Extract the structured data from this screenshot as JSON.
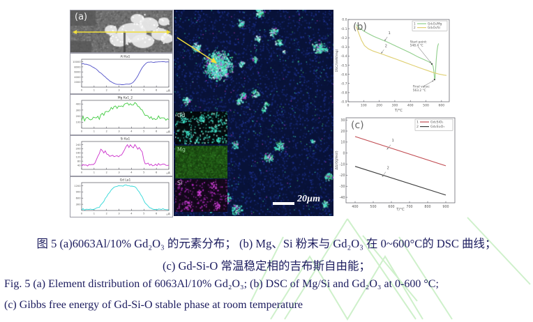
{
  "document": {
    "background": "#ffffff",
    "text_color": "#1b1b5e",
    "watermark_color": "#c9efc5"
  },
  "figure": {
    "panel_a_label": "(a)",
    "scale_bar_label": "20µm",
    "insets": [
      {
        "label": "Gd"
      },
      {
        "label": "Mg"
      },
      {
        "label": "Si"
      }
    ],
    "colors": {
      "scan_line": "#f2df3a",
      "annotation_arrow": "#f2df3a",
      "map_background": "#081238",
      "gd_speckle": "#3fe6cb",
      "mg_field": "#2c711f",
      "si_speckle": "#b82cc8"
    }
  },
  "caption": {
    "line1": "图 5 (a)6063Al/10% Gd₂O₃ 的元素分布；  (b) Mg、Si 粉末与 Gd₂O₃ 在 0~600°C的 DSC 曲线；",
    "line2": "(c) Gd-Si-O 常温稳定相的吉布斯自由能；",
    "line3": "Fig. 5 (a) Element distribution of 6063Al/10% Gd₂O₃; (b) DSC of Mg/Si and Gd₂O₃ at 0-600 °C;",
    "line4": "(c) Gibbs free energy of Gd-Si-O stable phase at room temperature"
  },
  "chart_data": [
    {
      "id": "scan-al",
      "type": "line",
      "title": "Al Ka1",
      "xlabel": "µm",
      "xlim": [
        0,
        7
      ],
      "xticks": [
        0,
        1,
        2,
        3,
        4,
        5,
        6,
        7
      ],
      "ylim": [
        0,
        11000
      ],
      "yticks": [
        2000,
        4000,
        6000,
        8000,
        10000
      ],
      "series": [
        {
          "name": "Al Ka1",
          "color": "#5050c8",
          "jitter": 110,
          "values": [
            9200,
            9250,
            9120,
            9040,
            8900,
            8720,
            8460,
            8160,
            7820,
            7420,
            6960,
            6460,
            5960,
            5460,
            4960,
            4460,
            3960,
            3460,
            2960,
            2460,
            2060,
            1720,
            1460,
            1260,
            1160,
            1100,
            1080,
            1060,
            1050,
            1060,
            1085,
            1125,
            1200,
            1350,
            1600,
            2000,
            2600,
            3400,
            4400,
            5500,
            6600,
            7600,
            8450,
            9100,
            9550,
            9780,
            9880,
            9940,
            9900,
            9860,
            9940,
            10000,
            9910,
            9960,
            10040,
            9980,
            10020,
            9960,
            10030,
            10000
          ]
        }
      ]
    },
    {
      "id": "scan-mg",
      "type": "line",
      "title": "Mg Ka1_2",
      "xlabel": "µm",
      "xlim": [
        0,
        7
      ],
      "xticks": [
        0,
        1,
        2,
        3,
        4,
        5,
        6,
        7
      ],
      "ylim": [
        0,
        460
      ],
      "yticks": [
        100,
        200,
        300,
        400
      ],
      "series": [
        {
          "name": "Mg Ka1_2",
          "color": "#3ecb3e",
          "jitter": 24,
          "values": [
            150,
            178,
            142,
            168,
            186,
            154,
            132,
            162,
            192,
            172,
            150,
            182,
            162,
            200,
            232,
            214,
            252,
            282,
            264,
            302,
            330,
            312,
            352,
            372,
            344,
            376,
            360,
            392,
            372,
            402,
            386,
            406,
            392,
            410,
            396,
            380,
            400,
            386,
            364,
            340,
            310,
            280,
            252,
            224,
            206,
            186,
            172,
            190,
            162,
            182,
            152,
            172,
            190,
            160,
            176,
            154,
            170,
            146,
            166,
            156
          ]
        }
      ]
    },
    {
      "id": "scan-si",
      "type": "line",
      "title": "Si Ka1",
      "xlabel": "µm",
      "xlim": [
        0,
        7
      ],
      "xticks": [
        0,
        1,
        2,
        3,
        4,
        5,
        6,
        7
      ],
      "ylim": [
        0,
        270
      ],
      "yticks": [
        40,
        80,
        120,
        160,
        200,
        240
      ],
      "series": [
        {
          "name": "Si Ka1",
          "color": "#cc2fcc",
          "jitter": 11,
          "values": [
            45,
            38,
            50,
            42,
            36,
            48,
            42,
            55,
            50,
            60,
            85,
            120,
            160,
            185,
            175,
            160,
            170,
            150,
            140,
            130,
            125,
            135,
            120,
            130,
            140,
            126,
            136,
            150,
            170,
            190,
            210,
            234,
            216,
            240,
            226,
            206,
            230,
            210,
            196,
            206,
            186,
            160,
            96,
            60,
            50,
            55,
            44,
            50,
            42,
            46,
            55,
            44,
            50,
            40,
            48,
            44,
            52,
            46,
            42,
            48
          ]
        }
      ]
    },
    {
      "id": "scan-gd",
      "type": "line",
      "title": "Gd La1",
      "xlabel": "µm",
      "xlim": [
        0,
        7
      ],
      "xticks": [
        0,
        1,
        2,
        3,
        4,
        5,
        6,
        7
      ],
      "ylim": [
        0,
        1350
      ],
      "yticks": [
        300,
        600,
        900,
        1200
      ],
      "series": [
        {
          "name": "Gd La1",
          "color": "#2fd8d8",
          "jitter": 32,
          "values": [
            55,
            60,
            50,
            58,
            65,
            55,
            60,
            70,
            62,
            75,
            90,
            120,
            170,
            240,
            330,
            440,
            560,
            680,
            790,
            890,
            980,
            1060,
            1120,
            1160,
            1190,
            1210,
            1190,
            1225,
            1200,
            1235,
            1210,
            1190,
            1220,
            1180,
            1200,
            1160,
            1120,
            1060,
            980,
            880,
            760,
            630,
            500,
            380,
            280,
            200,
            145,
            110,
            90,
            75,
            65,
            60,
            55,
            62,
            58,
            65,
            55,
            60,
            52,
            58
          ]
        }
      ]
    },
    {
      "id": "dsc",
      "type": "line",
      "panel_label": "(b)",
      "title": "DSC of Mg/Si powder with Gd2O3",
      "xlabel": "T/°C",
      "ylabel": "DSC/(mW/mg)",
      "xlim": [
        0,
        650
      ],
      "xticks": [
        0,
        100,
        200,
        300,
        400,
        500,
        600
      ],
      "ylim": [
        -0.9,
        0
      ],
      "yticks": [
        0,
        -0.1,
        -0.2,
        -0.3,
        -0.4,
        -0.5,
        -0.6,
        -0.7,
        -0.8,
        -0.9
      ],
      "ytick_labels": [
        "0.0",
        "-0.1",
        "-0.2",
        "-0.3",
        "-0.4",
        "-0.5",
        "-0.6",
        "-0.7",
        "-0.8",
        "-0.9"
      ],
      "legend": [
        {
          "num": "1",
          "name": "Gd₂O₃/Mg",
          "color": "#8fce8a"
        },
        {
          "num": "2",
          "name": "Gd₂O₃/Si",
          "color": "#dfcf70"
        }
      ],
      "series": [
        {
          "name": "Gd₂O₃/Mg",
          "color": "#8fce8a",
          "points": [
            [
              52,
              -0.055
            ],
            [
              75,
              -0.095
            ],
            [
              100,
              -0.125
            ],
            [
              130,
              -0.155
            ],
            [
              165,
              -0.185
            ],
            [
              200,
              -0.21
            ],
            [
              250,
              -0.245
            ],
            [
              300,
              -0.285
            ],
            [
              350,
              -0.325
            ],
            [
              400,
              -0.365
            ],
            [
              450,
              -0.41
            ],
            [
              490,
              -0.44
            ],
            [
              515,
              -0.46
            ],
            [
              535,
              -0.48
            ],
            [
              546,
              -0.51
            ],
            [
              551,
              -0.565
            ],
            [
              554,
              -0.625
            ],
            [
              556,
              -0.655
            ],
            [
              559,
              -0.635
            ],
            [
              562,
              -0.55
            ],
            [
              566,
              -0.44
            ],
            [
              571,
              -0.345
            ],
            [
              576,
              -0.29
            ],
            [
              581,
              -0.262
            ]
          ]
        },
        {
          "name": "Gd₂O₃/Si",
          "color": "#dfcf70",
          "points": [
            [
              52,
              -0.075
            ],
            [
              68,
              -0.15
            ],
            [
              85,
              -0.225
            ],
            [
              105,
              -0.285
            ],
            [
              130,
              -0.32
            ],
            [
              160,
              -0.345
            ],
            [
              195,
              -0.365
            ],
            [
              230,
              -0.385
            ],
            [
              270,
              -0.41
            ],
            [
              310,
              -0.435
            ],
            [
              350,
              -0.46
            ],
            [
              390,
              -0.485
            ],
            [
              430,
              -0.51
            ],
            [
              470,
              -0.535
            ],
            [
              510,
              -0.558
            ],
            [
              550,
              -0.582
            ],
            [
              585,
              -0.598
            ],
            [
              615,
              -0.608
            ],
            [
              632,
              -0.612
            ]
          ]
        }
      ],
      "annotations": [
        {
          "label": "1",
          "size": "num",
          "tx": 258,
          "ty": -0.16,
          "arrow": [
            252,
            -0.19,
            234,
            -0.235
          ]
        },
        {
          "label": "2",
          "size": "num",
          "tx": 236,
          "ty": -0.3,
          "arrow": [
            230,
            -0.33,
            212,
            -0.372
          ]
        },
        {
          "label": "Start point:\n548.4 °C",
          "tx": 398,
          "ty": -0.255,
          "arrow": [
            448,
            -0.295,
            533,
            -0.475
          ],
          "marker": [
            538,
            -0.486
          ]
        },
        {
          "label": "Final value:\n563.2 °C",
          "tx": 416,
          "ty": -0.745,
          "arrow": [
            487,
            -0.728,
            550,
            -0.667
          ],
          "marker": [
            555,
            -0.657
          ]
        }
      ]
    },
    {
      "id": "gibbs",
      "type": "line",
      "panel_label": "(c)",
      "title": "Gibbs free energy of Gd-Si-O stable phases",
      "xlabel": "T/°C",
      "ylabel": "ΔG/(kJ/mol)",
      "xlim": [
        350,
        950
      ],
      "xticks": [
        400,
        500,
        600,
        700,
        800,
        900
      ],
      "ylim": [
        -45,
        32
      ],
      "yticks": [
        30,
        20,
        10,
        0,
        -10,
        -20,
        -30,
        -40
      ],
      "legend": [
        {
          "num": "1",
          "name": "Gd₂SiO₅",
          "color": "#c04a50"
        },
        {
          "num": "2",
          "name": "Gd₂Si₂O₇",
          "color": "#3a3a3a"
        }
      ],
      "series": [
        {
          "name": "Gd₂SiO₅",
          "color": "#c04a50",
          "points": [
            [
              400,
              15
            ],
            [
              900,
              -11.5
            ]
          ]
        },
        {
          "name": "Gd₂Si₂O₇",
          "color": "#3a3a3a",
          "points": [
            [
              400,
              -12
            ],
            [
              900,
              -38
            ]
          ]
        }
      ],
      "annotations": [
        {
          "label": "1",
          "size": "num",
          "tx": 602,
          "ty": 10.5,
          "arrow": [
            596,
            7.5,
            575,
            3.2
          ]
        },
        {
          "label": "2",
          "size": "num",
          "tx": 575,
          "ty": -14.5,
          "arrow": [
            569,
            -17,
            549,
            -21.5
          ]
        }
      ]
    }
  ]
}
